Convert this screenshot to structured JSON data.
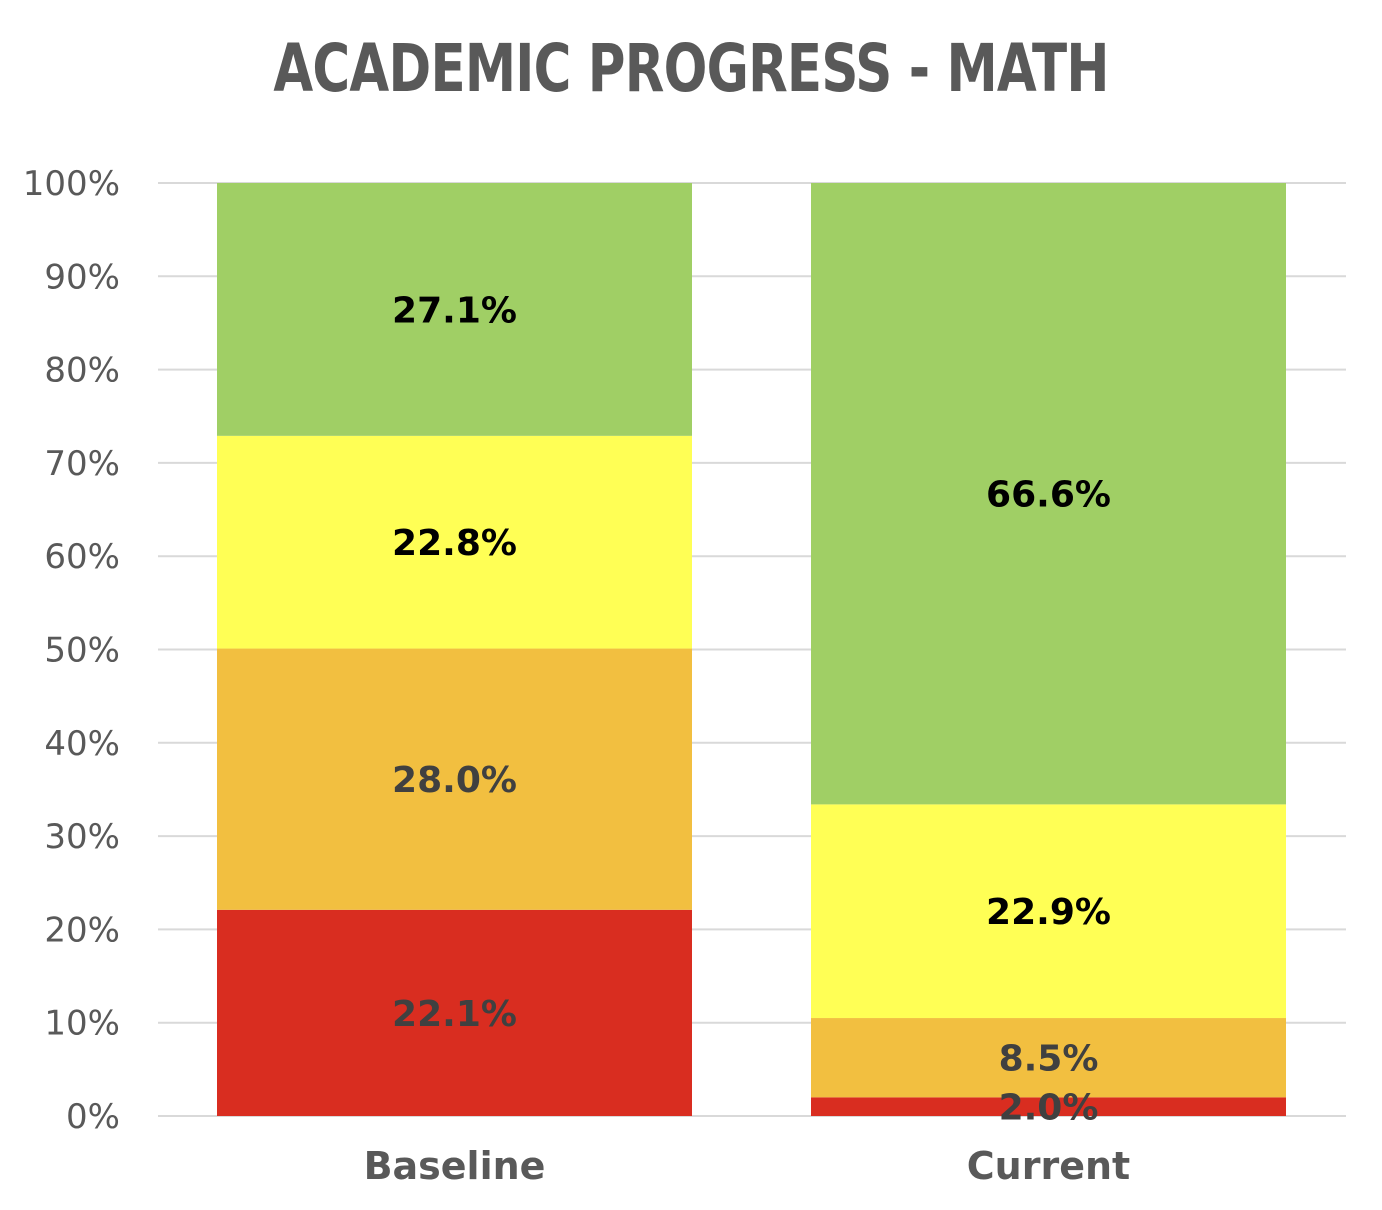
{
  "chart_data": {
    "type": "bar",
    "stacked": true,
    "title": "ACADEMIC PROGRESS - MATH",
    "categories": [
      "Baseline",
      "Current"
    ],
    "y_ticks": [
      "0%",
      "10%",
      "20%",
      "30%",
      "40%",
      "50%",
      "60%",
      "70%",
      "80%",
      "90%",
      "100%"
    ],
    "ylim": [
      0,
      100
    ],
    "grid": true,
    "legend": "none",
    "series": [
      {
        "color": "#d92d20",
        "label_color": "#404040",
        "values": [
          22.1,
          2.0
        ],
        "labels": [
          "22.1%",
          "2.0%"
        ]
      },
      {
        "color": "#f2bf40",
        "label_color": "#404040",
        "values": [
          28.0,
          8.5
        ],
        "labels": [
          "28.0%",
          "8.5%"
        ]
      },
      {
        "color": "#ffff55",
        "label_color": "#000000",
        "values": [
          22.8,
          22.9
        ],
        "labels": [
          "22.8%",
          "22.9%"
        ]
      },
      {
        "color": "#a0cf65",
        "label_color": "#000000",
        "values": [
          27.1,
          66.6
        ],
        "labels": [
          "27.1%",
          "66.6%"
        ]
      }
    ]
  }
}
